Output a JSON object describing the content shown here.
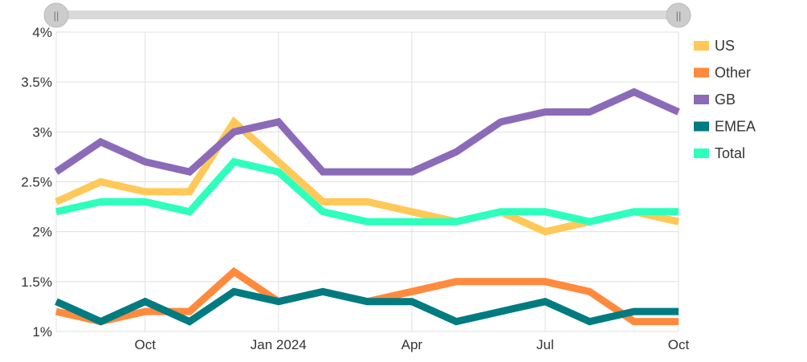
{
  "slider": {
    "track_color": "#d9d9d9",
    "handle_color": "#cccccc",
    "left_handle_glyph": "||",
    "right_handle_glyph": "||"
  },
  "chart_data": {
    "type": "line",
    "x_tick_labels": [
      "Oct",
      "Jan 2024",
      "Apr",
      "Jul",
      "Oct"
    ],
    "y_tick_labels": [
      "1%",
      "1.5%",
      "2%",
      "2.5%",
      "3%",
      "3.5%",
      "4%"
    ],
    "ylim": [
      1,
      4
    ],
    "grid": true,
    "legend_position": "right",
    "series": [
      {
        "name": "US",
        "color": "#ffc857",
        "values": [
          2.3,
          2.5,
          2.4,
          2.4,
          3.1,
          2.7,
          2.3,
          2.3,
          2.2,
          2.1,
          2.2,
          2.0,
          2.1,
          2.2,
          2.1
        ]
      },
      {
        "name": "Other",
        "color": "#ff8a3d",
        "values": [
          1.2,
          1.1,
          1.2,
          1.2,
          1.6,
          1.3,
          1.4,
          1.3,
          1.4,
          1.5,
          1.5,
          1.5,
          1.4,
          1.1,
          1.1
        ]
      },
      {
        "name": "GB",
        "color": "#8b6bb8",
        "values": [
          2.6,
          2.9,
          2.7,
          2.6,
          3.0,
          3.1,
          2.6,
          2.6,
          2.6,
          2.8,
          3.1,
          3.2,
          3.2,
          3.4,
          3.2
        ]
      },
      {
        "name": "EMEA",
        "color": "#007b80",
        "values": [
          1.3,
          1.1,
          1.3,
          1.1,
          1.4,
          1.3,
          1.4,
          1.3,
          1.3,
          1.1,
          1.2,
          1.3,
          1.1,
          1.2,
          1.2
        ]
      },
      {
        "name": "Total",
        "color": "#2dffbd",
        "values": [
          2.2,
          2.3,
          2.3,
          2.2,
          2.7,
          2.6,
          2.2,
          2.1,
          2.1,
          2.1,
          2.2,
          2.2,
          2.1,
          2.2,
          2.2
        ]
      }
    ]
  }
}
